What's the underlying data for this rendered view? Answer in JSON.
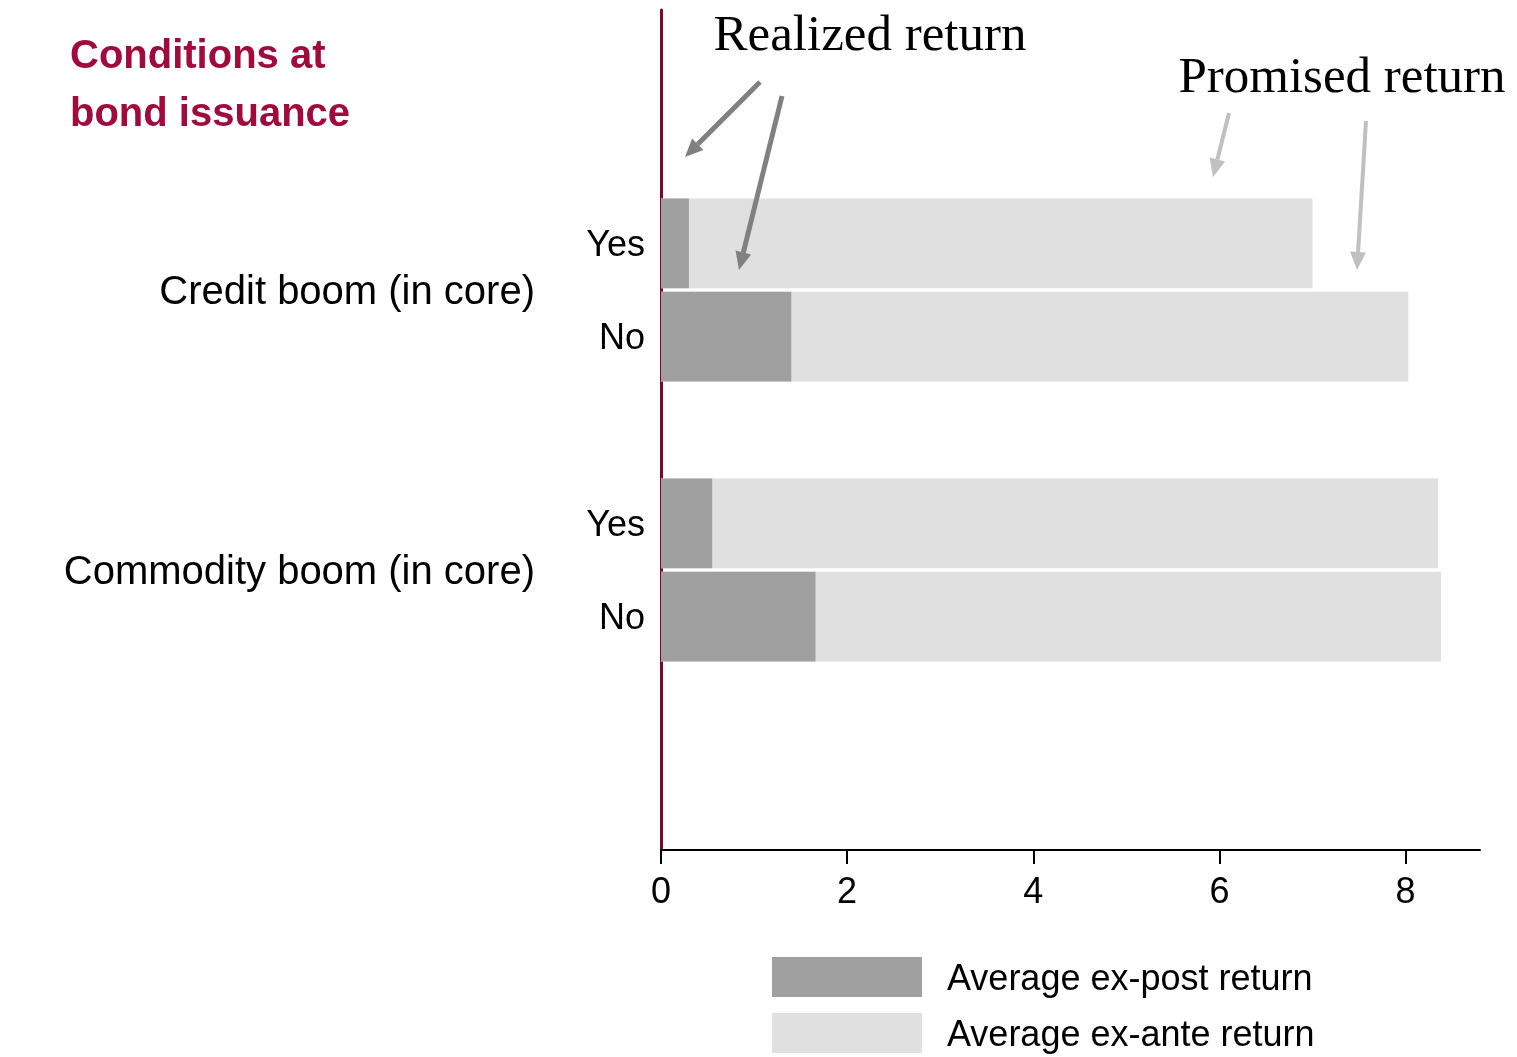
{
  "chart_data": {
    "type": "bar",
    "orientation": "horizontal",
    "title": "Conditions at bond issuance",
    "categories": [
      null,
      null,
      "Yes",
      "No",
      null,
      "Yes",
      "No",
      null,
      null
    ],
    "series": [
      {
        "name": "Average ex-post return",
        "color": "#a0a0a0",
        "values": [
          null,
          null,
          0.3,
          1.4,
          null,
          0.55,
          1.66,
          null,
          null
        ]
      },
      {
        "name": "Average ex-ante return",
        "color": "#e0e0e0",
        "values": [
          null,
          null,
          7.0,
          8.03,
          null,
          8.35,
          8.38,
          null,
          null
        ]
      }
    ],
    "xlim": [
      0,
      8.8
    ],
    "xticks": [
      0,
      2,
      4,
      6,
      8
    ],
    "grid": false,
    "legend": "bottom",
    "annotations": [
      "Realized return",
      "Promised return",
      "Credit boom (in core)",
      "Commodity boom (in core)"
    ]
  }
}
